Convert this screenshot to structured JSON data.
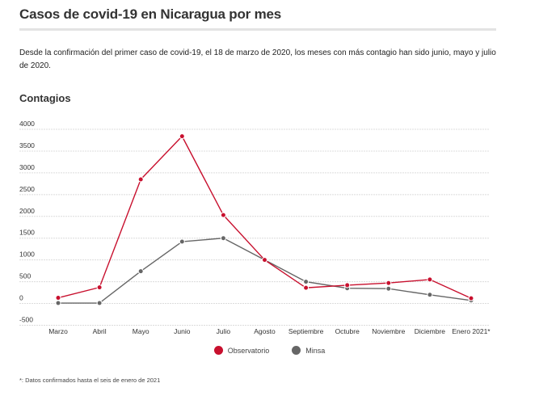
{
  "title": "Casos de covid-19 en Nicaragua por mes",
  "subtitle": "Desde la confirmación del primer caso de covid-19, el 18 de marzo de 2020, los meses con más contagio han sido junio, mayo y julio de 2020.",
  "footnote": "*: Datos confirmados hasta el seis de enero de 2021",
  "colors": {
    "observatorio": "#c8102e",
    "minsa": "#666666",
    "grid": "#dcdcdc"
  },
  "chart_data": {
    "type": "line",
    "title": "Contagios",
    "xlabel": "",
    "ylabel": "",
    "ylim": [
      -500,
      4000
    ],
    "yticks": [
      -500,
      0,
      500,
      1000,
      1500,
      2000,
      2500,
      3000,
      3500,
      4000
    ],
    "categories": [
      "Marzo",
      "Abril",
      "Mayo",
      "Junio",
      "Julio",
      "Agosto",
      "Septiembre",
      "Octubre",
      "Noviembre",
      "Diciembre",
      "Enero 2021*"
    ],
    "series": [
      {
        "name": "Observatorio",
        "color": "#c8102e",
        "values": [
          130,
          370,
          2850,
          3840,
          2030,
          1000,
          360,
          420,
          470,
          550,
          120
        ]
      },
      {
        "name": "Minsa",
        "color": "#666666",
        "values": [
          10,
          10,
          740,
          1420,
          1500,
          1000,
          500,
          350,
          340,
          200,
          70
        ]
      }
    ],
    "legend_position": "bottom-center"
  }
}
